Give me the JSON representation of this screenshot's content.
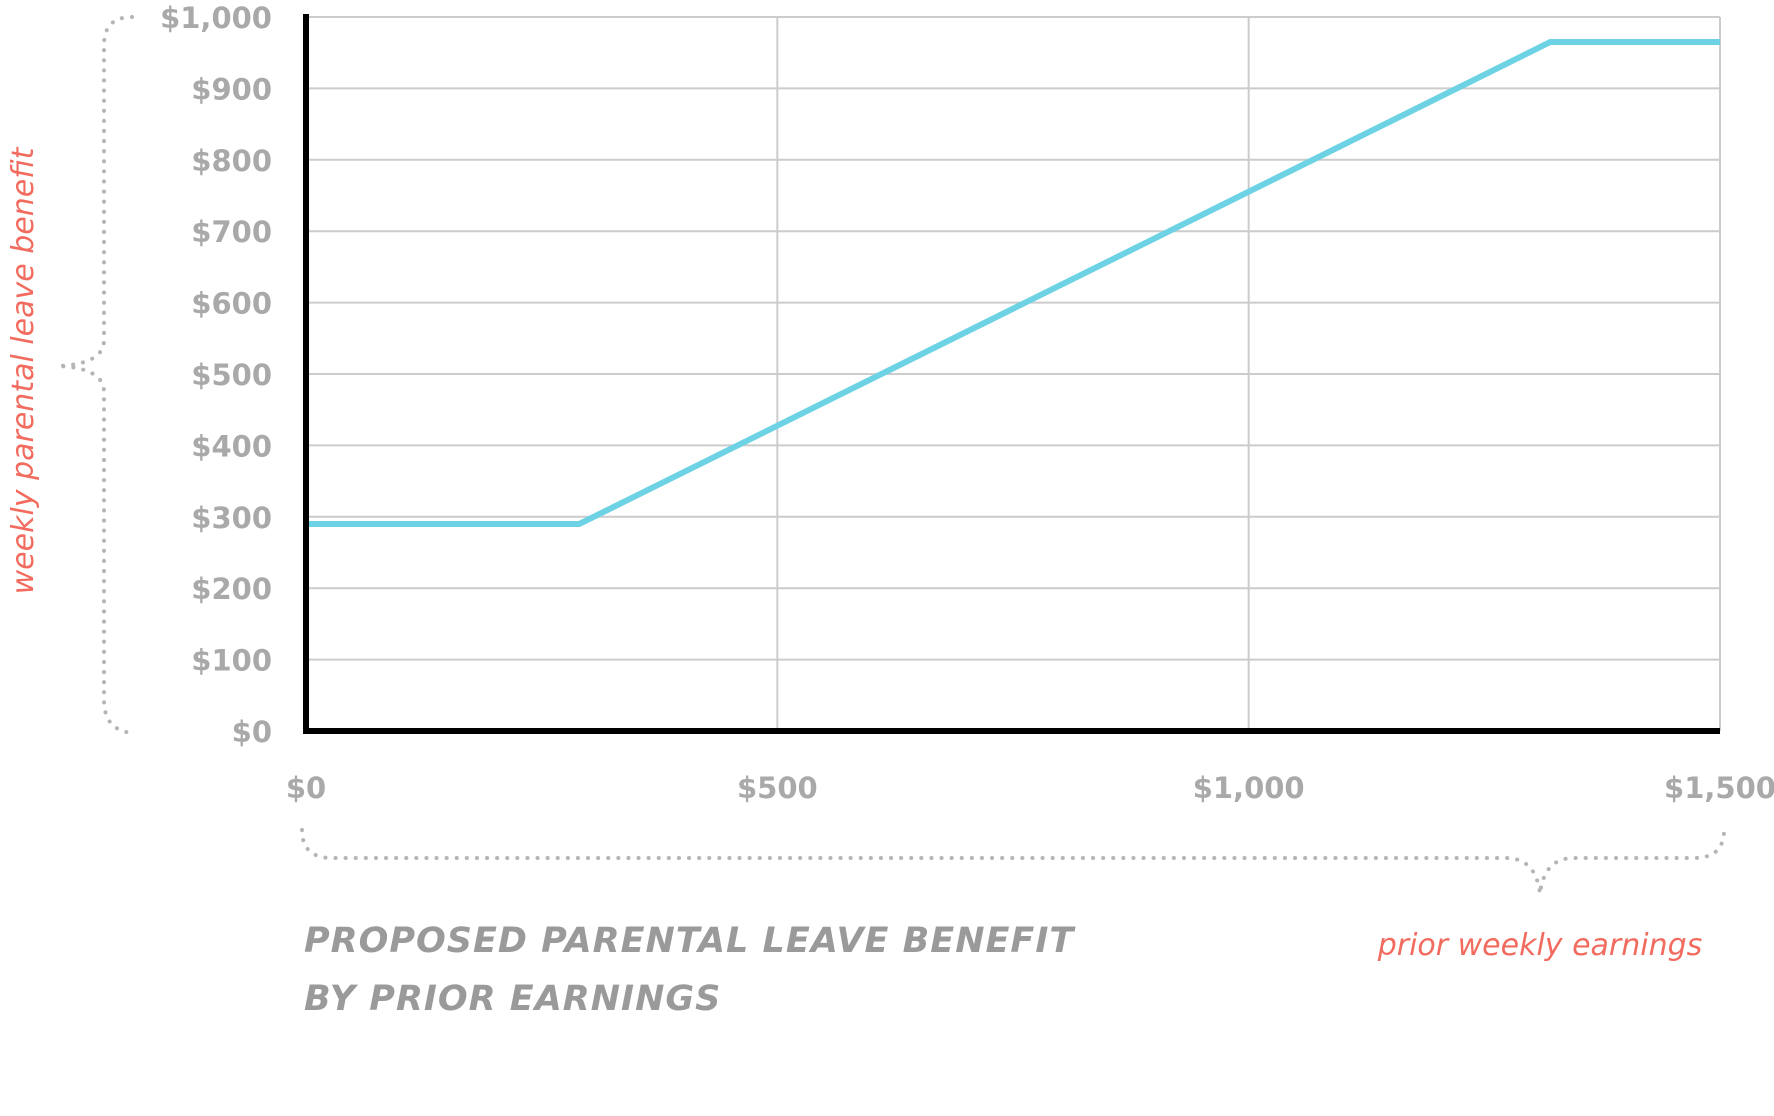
{
  "chart_data": {
    "type": "line",
    "title": "PROPOSED PARENTAL LEAVE BENEFIT BY PRIOR EARNINGS",
    "title_lines": [
      "PROPOSED PARENTAL LEAVE BENEFIT",
      "BY PRIOR EARNINGS"
    ],
    "xlabel": "prior weekly earnings",
    "ylabel": "weekly parental leave benefit",
    "xlim": [
      0,
      1500
    ],
    "ylim": [
      0,
      1000
    ],
    "x_ticks": [
      0,
      500,
      1000,
      1500
    ],
    "x_tick_labels": [
      "$0",
      "$500",
      "$1,000",
      "$1,500"
    ],
    "y_ticks": [
      0,
      100,
      200,
      300,
      400,
      500,
      600,
      700,
      800,
      900,
      1000
    ],
    "y_tick_labels": [
      "$0",
      "$100",
      "$200",
      "$300",
      "$400",
      "$500",
      "$600",
      "$700",
      "$800",
      "$900",
      "$1,000"
    ],
    "grid": true,
    "series": [
      {
        "x": [
          0,
          290,
          1320,
          1500
        ],
        "y": [
          290,
          290,
          965,
          965
        ],
        "color": "#6dd3e4"
      }
    ],
    "colors": {
      "line": "#6dd3e4",
      "axis": "#000000",
      "grid": "#cccccc",
      "tick_text": "#a9a9a9",
      "axis_title": "#f26b5f",
      "caption": "#9a9a9a"
    }
  }
}
